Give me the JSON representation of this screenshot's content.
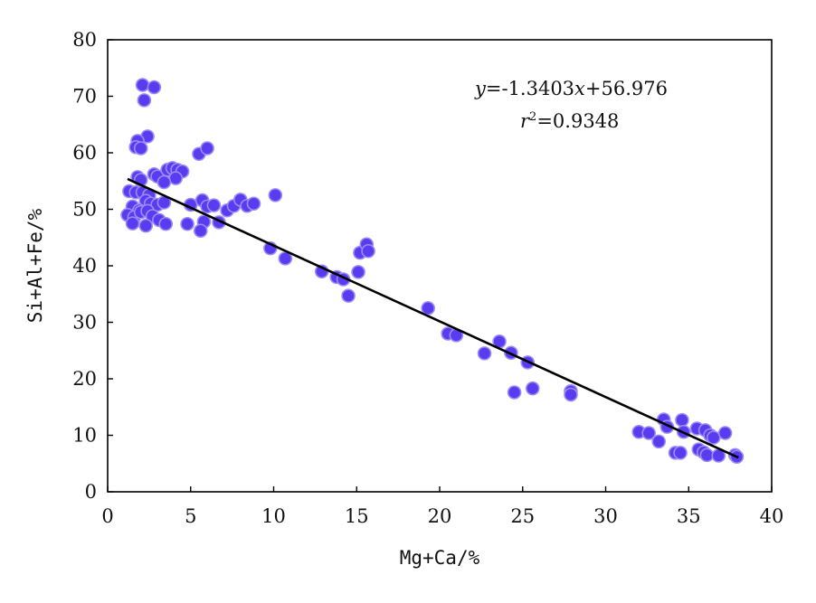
{
  "chart_data": {
    "type": "scatter",
    "xlabel": "Mg+Ca/%",
    "ylabel": "Si+Al+Fe/%",
    "xlim": [
      0,
      40
    ],
    "ylim": [
      0,
      80
    ],
    "xticks": [
      0,
      5,
      10,
      15,
      20,
      25,
      30,
      35,
      40
    ],
    "yticks": [
      0,
      10,
      20,
      30,
      40,
      50,
      60,
      70,
      80
    ],
    "grid": false,
    "legend": "none",
    "marker_color": "#5a3cf0",
    "marker_edge_color": "#9b8cf5",
    "line_color": "#000000",
    "equation": {
      "y_var": "y",
      "eq_rest": "=-1.3403",
      "x_var": "x",
      "eq_tail": "+56.976"
    },
    "r2": {
      "r_var": "r",
      "sup": "2",
      "value": "=0.9348"
    },
    "trendline": {
      "slope": -1.3403,
      "intercept": 56.976,
      "x_start": 1.2,
      "x_end": 38.0
    },
    "points": [
      [
        2.1,
        72.0
      ],
      [
        2.8,
        71.6
      ],
      [
        2.2,
        69.3
      ],
      [
        2.4,
        62.9
      ],
      [
        1.8,
        62.1
      ],
      [
        1.7,
        61.0
      ],
      [
        2.0,
        60.8
      ],
      [
        5.5,
        59.8
      ],
      [
        6.0,
        60.8
      ],
      [
        1.8,
        55.7
      ],
      [
        2.0,
        55.2
      ],
      [
        2.8,
        56.2
      ],
      [
        3.0,
        55.8
      ],
      [
        3.6,
        57.0
      ],
      [
        3.9,
        57.3
      ],
      [
        4.2,
        57.0
      ],
      [
        4.5,
        56.7
      ],
      [
        4.1,
        55.5
      ],
      [
        3.4,
        54.8
      ],
      [
        1.3,
        53.2
      ],
      [
        1.7,
        53.0
      ],
      [
        2.1,
        53.0
      ],
      [
        2.5,
        52.5
      ],
      [
        2.3,
        51.5
      ],
      [
        1.5,
        50.5
      ],
      [
        1.9,
        49.8
      ],
      [
        2.6,
        51.0
      ],
      [
        3.0,
        50.8
      ],
      [
        3.4,
        51.2
      ],
      [
        1.2,
        49.0
      ],
      [
        1.6,
        48.6
      ],
      [
        2.0,
        49.5
      ],
      [
        2.4,
        49.7
      ],
      [
        2.7,
        48.8
      ],
      [
        3.1,
        48.1
      ],
      [
        1.5,
        47.5
      ],
      [
        2.3,
        47.1
      ],
      [
        3.5,
        47.4
      ],
      [
        4.8,
        47.4
      ],
      [
        5.0,
        50.8
      ],
      [
        5.7,
        51.6
      ],
      [
        6.0,
        50.5
      ],
      [
        6.4,
        50.7
      ],
      [
        5.8,
        47.8
      ],
      [
        5.6,
        46.2
      ],
      [
        6.7,
        47.7
      ],
      [
        7.2,
        49.8
      ],
      [
        7.6,
        50.6
      ],
      [
        8.0,
        51.7
      ],
      [
        8.4,
        50.6
      ],
      [
        8.8,
        51.0
      ],
      [
        10.1,
        52.5
      ],
      [
        9.8,
        43.1
      ],
      [
        10.7,
        41.3
      ],
      [
        12.9,
        39.0
      ],
      [
        13.8,
        38.0
      ],
      [
        14.2,
        37.6
      ],
      [
        14.5,
        34.7
      ],
      [
        15.1,
        38.9
      ],
      [
        15.2,
        42.3
      ],
      [
        15.6,
        43.8
      ],
      [
        15.7,
        42.6
      ],
      [
        19.3,
        32.5
      ],
      [
        20.5,
        28.0
      ],
      [
        21.0,
        27.7
      ],
      [
        22.7,
        24.5
      ],
      [
        23.6,
        26.6
      ],
      [
        24.3,
        24.6
      ],
      [
        24.5,
        17.6
      ],
      [
        25.3,
        22.9
      ],
      [
        25.6,
        18.3
      ],
      [
        27.9,
        17.8
      ],
      [
        27.9,
        17.2
      ],
      [
        32.0,
        10.6
      ],
      [
        32.6,
        10.4
      ],
      [
        33.2,
        8.9
      ],
      [
        33.5,
        12.8
      ],
      [
        33.7,
        11.5
      ],
      [
        34.2,
        6.9
      ],
      [
        34.5,
        6.9
      ],
      [
        34.6,
        12.7
      ],
      [
        34.7,
        10.6
      ],
      [
        35.5,
        11.2
      ],
      [
        35.6,
        7.5
      ],
      [
        35.9,
        7.0
      ],
      [
        36.0,
        10.9
      ],
      [
        36.1,
        6.5
      ],
      [
        36.3,
        10.0
      ],
      [
        36.5,
        9.6
      ],
      [
        36.8,
        6.4
      ],
      [
        37.2,
        10.4
      ],
      [
        37.8,
        6.5
      ],
      [
        37.9,
        6.2
      ]
    ]
  }
}
